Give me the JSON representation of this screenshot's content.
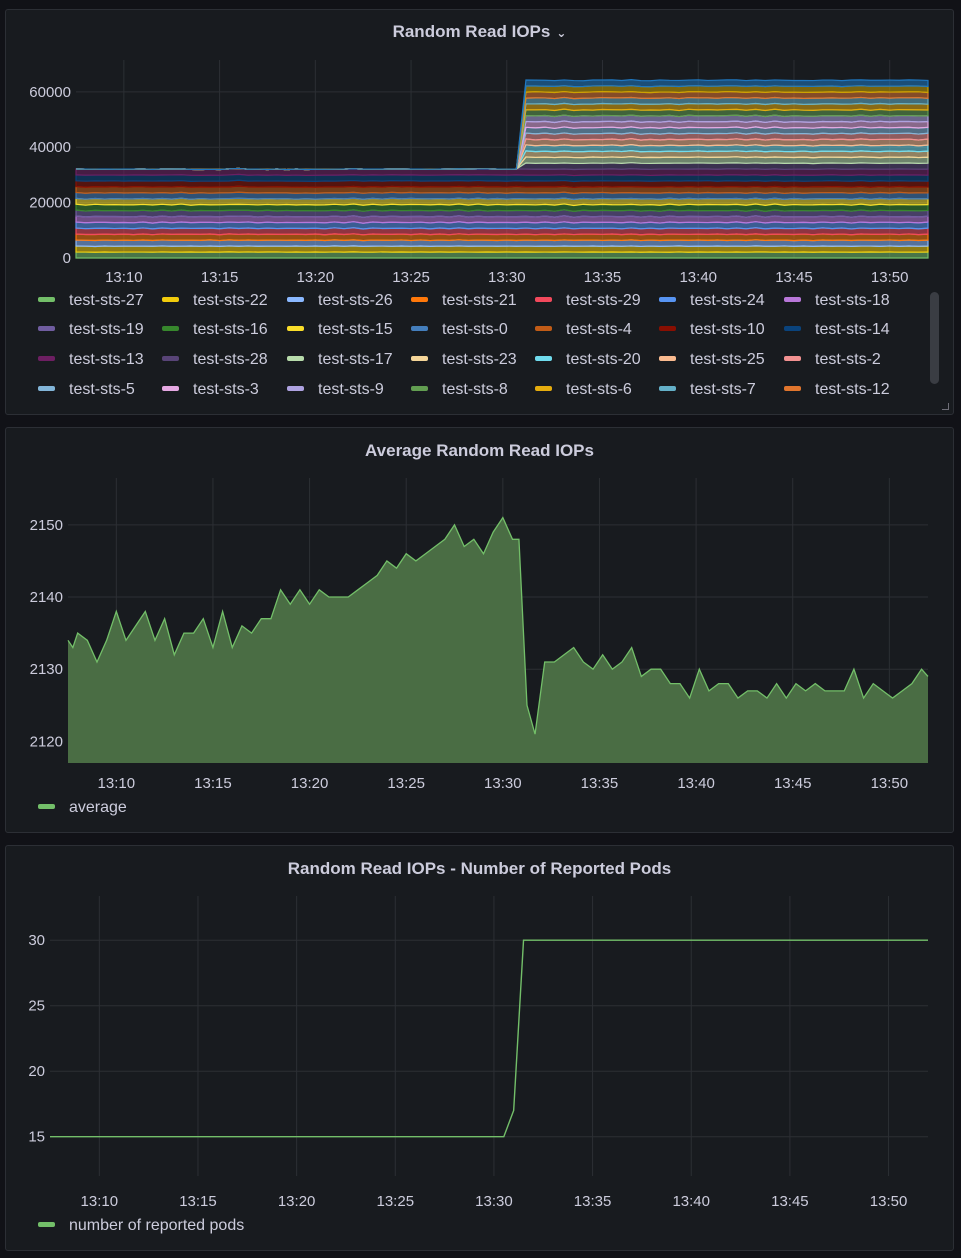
{
  "panels": [
    {
      "title": "Random Read IOPs",
      "has_menu": true
    },
    {
      "title": "Average Random Read IOPs"
    },
    {
      "title": "Random Read IOPs - Number of Reported Pods"
    }
  ],
  "chart_data": [
    {
      "type": "area",
      "title": "Random Read IOPs",
      "stacked": true,
      "ylim": [
        0,
        65000
      ],
      "y_ticks": [
        "0",
        "20000",
        "40000",
        "60000"
      ],
      "x_ticks": [
        "13:10",
        "13:15",
        "13:20",
        "13:25",
        "13:30",
        "13:35",
        "13:40",
        "13:45",
        "13:50"
      ],
      "x_range": [
        "13:07:30",
        "13:52:00"
      ],
      "step_time": "13:31",
      "series_before_step": 15,
      "series_after_step": 30,
      "approx_value_per_series": 2140,
      "series": [
        {
          "name": "test-sts-27",
          "color": "#73bf69"
        },
        {
          "name": "test-sts-22",
          "color": "#f2cc0c"
        },
        {
          "name": "test-sts-26",
          "color": "#8ab8ff"
        },
        {
          "name": "test-sts-21",
          "color": "#ff780a"
        },
        {
          "name": "test-sts-29",
          "color": "#f2495c"
        },
        {
          "name": "test-sts-24",
          "color": "#5794f2"
        },
        {
          "name": "test-sts-18",
          "color": "#b877d9"
        },
        {
          "name": "test-sts-19",
          "color": "#705da0"
        },
        {
          "name": "test-sts-16",
          "color": "#37872d"
        },
        {
          "name": "test-sts-15",
          "color": "#fade2a"
        },
        {
          "name": "test-sts-0",
          "color": "#447ebc"
        },
        {
          "name": "test-sts-4",
          "color": "#c15c17"
        },
        {
          "name": "test-sts-10",
          "color": "#890f02"
        },
        {
          "name": "test-sts-14",
          "color": "#0a437c"
        },
        {
          "name": "test-sts-13",
          "color": "#6d1f62"
        },
        {
          "name": "test-sts-28",
          "color": "#584477"
        },
        {
          "name": "test-sts-17",
          "color": "#b7dbab"
        },
        {
          "name": "test-sts-23",
          "color": "#f4d598"
        },
        {
          "name": "test-sts-20",
          "color": "#70dbed"
        },
        {
          "name": "test-sts-25",
          "color": "#f9ba8f"
        },
        {
          "name": "test-sts-2",
          "color": "#f29191"
        },
        {
          "name": "test-sts-5",
          "color": "#82b5d8"
        },
        {
          "name": "test-sts-3",
          "color": "#e5a8e2"
        },
        {
          "name": "test-sts-9",
          "color": "#aea2e0"
        },
        {
          "name": "test-sts-8",
          "color": "#629e51"
        },
        {
          "name": "test-sts-6",
          "color": "#e5ac0e"
        },
        {
          "name": "test-sts-7",
          "color": "#64b0c8"
        },
        {
          "name": "test-sts-12",
          "color": "#e0752d"
        }
      ]
    },
    {
      "type": "area",
      "title": "Average Random Read IOPs",
      "ylim": [
        2117,
        2154
      ],
      "y_ticks": [
        "2120",
        "2130",
        "2140",
        "2150"
      ],
      "x_ticks": [
        "13:10",
        "13:15",
        "13:20",
        "13:25",
        "13:30",
        "13:35",
        "13:40",
        "13:45",
        "13:50"
      ],
      "x_range": [
        "13:07:30",
        "13:52:00"
      ],
      "color": "#73bf69",
      "fill": "#4a6d44",
      "series": [
        {
          "name": "average",
          "points": [
            [
              "13:07:30",
              2134
            ],
            [
              "13:07:45",
              2133
            ],
            [
              "13:08:00",
              2135
            ],
            [
              "13:08:30",
              2134
            ],
            [
              "13:09:00",
              2131
            ],
            [
              "13:09:30",
              2134
            ],
            [
              "13:10:00",
              2138
            ],
            [
              "13:10:30",
              2134
            ],
            [
              "13:11:00",
              2136
            ],
            [
              "13:11:30",
              2138
            ],
            [
              "13:12:00",
              2134
            ],
            [
              "13:12:30",
              2137
            ],
            [
              "13:13:00",
              2132
            ],
            [
              "13:13:30",
              2135
            ],
            [
              "13:14:00",
              2135
            ],
            [
              "13:14:30",
              2137
            ],
            [
              "13:15:00",
              2133
            ],
            [
              "13:15:30",
              2138
            ],
            [
              "13:16:00",
              2133
            ],
            [
              "13:16:30",
              2136
            ],
            [
              "13:17:00",
              2135
            ],
            [
              "13:17:30",
              2137
            ],
            [
              "13:18:00",
              2137
            ],
            [
              "13:18:30",
              2141
            ],
            [
              "13:19:00",
              2139
            ],
            [
              "13:19:30",
              2141
            ],
            [
              "13:20:00",
              2139
            ],
            [
              "13:20:30",
              2141
            ],
            [
              "13:21:00",
              2140
            ],
            [
              "13:21:30",
              2140
            ],
            [
              "13:22:00",
              2140
            ],
            [
              "13:22:30",
              2141
            ],
            [
              "13:23:00",
              2142
            ],
            [
              "13:23:30",
              2143
            ],
            [
              "13:24:00",
              2145
            ],
            [
              "13:24:30",
              2144
            ],
            [
              "13:25:00",
              2146
            ],
            [
              "13:25:30",
              2145
            ],
            [
              "13:26:00",
              2146
            ],
            [
              "13:26:30",
              2147
            ],
            [
              "13:27:00",
              2148
            ],
            [
              "13:27:30",
              2150
            ],
            [
              "13:28:00",
              2147
            ],
            [
              "13:28:30",
              2148
            ],
            [
              "13:29:00",
              2146
            ],
            [
              "13:29:30",
              2149
            ],
            [
              "13:30:00",
              2151
            ],
            [
              "13:30:30",
              2148
            ],
            [
              "13:30:50",
              2148
            ],
            [
              "13:31:15",
              2125
            ],
            [
              "13:31:40",
              2121
            ],
            [
              "13:32:10",
              2131
            ],
            [
              "13:32:40",
              2131
            ],
            [
              "13:33:10",
              2132
            ],
            [
              "13:33:40",
              2133
            ],
            [
              "13:34:10",
              2131
            ],
            [
              "13:34:40",
              2130
            ],
            [
              "13:35:10",
              2132
            ],
            [
              "13:35:40",
              2130
            ],
            [
              "13:36:10",
              2131
            ],
            [
              "13:36:40",
              2133
            ],
            [
              "13:37:10",
              2129
            ],
            [
              "13:37:40",
              2130
            ],
            [
              "13:38:10",
              2130
            ],
            [
              "13:38:40",
              2128
            ],
            [
              "13:39:10",
              2128
            ],
            [
              "13:39:40",
              2126
            ],
            [
              "13:40:10",
              2130
            ],
            [
              "13:40:40",
              2127
            ],
            [
              "13:41:10",
              2128
            ],
            [
              "13:41:40",
              2128
            ],
            [
              "13:42:10",
              2126
            ],
            [
              "13:42:40",
              2127
            ],
            [
              "13:43:10",
              2127
            ],
            [
              "13:43:40",
              2126
            ],
            [
              "13:44:10",
              2128
            ],
            [
              "13:44:40",
              2126
            ],
            [
              "13:45:10",
              2128
            ],
            [
              "13:45:40",
              2127
            ],
            [
              "13:46:10",
              2128
            ],
            [
              "13:46:40",
              2127
            ],
            [
              "13:47:10",
              2127
            ],
            [
              "13:47:40",
              2127
            ],
            [
              "13:48:10",
              2130
            ],
            [
              "13:48:40",
              2126
            ],
            [
              "13:49:10",
              2128
            ],
            [
              "13:49:40",
              2127
            ],
            [
              "13:50:10",
              2126
            ],
            [
              "13:50:40",
              2127
            ],
            [
              "13:51:10",
              2128
            ],
            [
              "13:51:40",
              2130
            ],
            [
              "13:52:00",
              2129
            ]
          ]
        }
      ]
    },
    {
      "type": "line",
      "title": "Random Read IOPs - Number of Reported Pods",
      "ylim": [
        12,
        32
      ],
      "y_ticks": [
        "15",
        "20",
        "25",
        "30"
      ],
      "x_ticks": [
        "13:10",
        "13:15",
        "13:20",
        "13:25",
        "13:30",
        "13:35",
        "13:40",
        "13:45",
        "13:50"
      ],
      "x_range": [
        "13:07:30",
        "13:52:00"
      ],
      "color": "#73bf69",
      "series": [
        {
          "name": "number of reported pods",
          "points": [
            [
              "13:07:30",
              15
            ],
            [
              "13:30:30",
              15
            ],
            [
              "13:31:00",
              17
            ],
            [
              "13:31:30",
              30
            ],
            [
              "13:52:00",
              30
            ]
          ]
        }
      ]
    }
  ]
}
